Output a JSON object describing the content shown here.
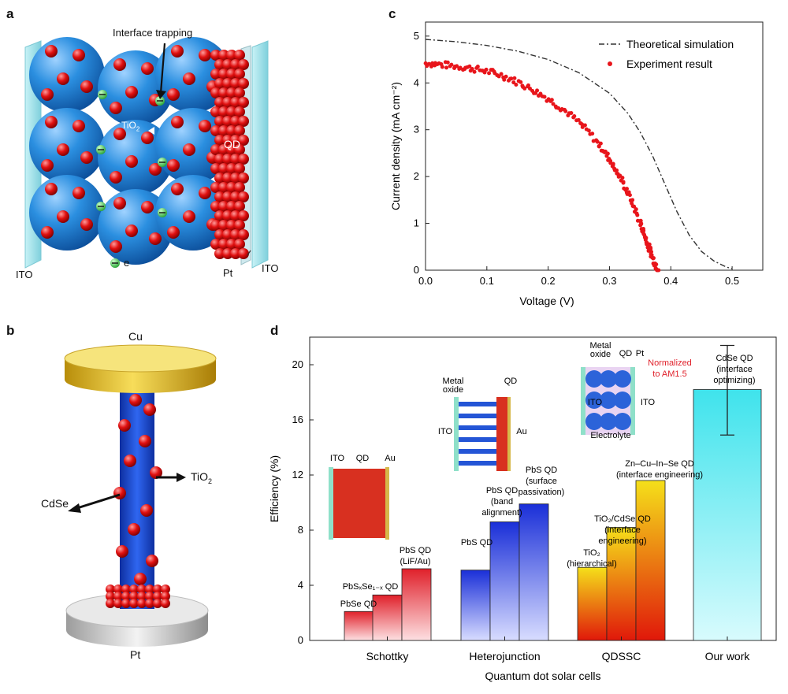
{
  "panels": {
    "a": {
      "letter": "a",
      "labels": {
        "interface": "Interface trapping",
        "tio2": "TiO",
        "tio2_sub": "2",
        "qd": "QD",
        "ito_left": "ITO",
        "ito_right": "ITO",
        "pt": "Pt",
        "electron": "e"
      },
      "colors": {
        "tio2_sphere": "#2b8fe0",
        "qd": "#e01010",
        "electron": "#2ecc40",
        "ito": "#9fe0ea"
      }
    },
    "b": {
      "letter": "b",
      "labels": {
        "cu": "Cu",
        "tio2": "TiO",
        "tio2_sub": "2",
        "cdse": "CdSe",
        "pt": "Pt"
      },
      "colors": {
        "cu": "#e6c42a",
        "rod": "#1f4fd6",
        "qd": "#d80c0c",
        "pt": "#c9c9c9"
      }
    },
    "c": {
      "letter": "c"
    },
    "d": {
      "letter": "d"
    }
  },
  "chart_data": [
    {
      "panel": "c",
      "type": "line",
      "title": "",
      "xlabel": "Voltage (V)",
      "ylabel": "Current density (mA cm⁻²)",
      "xlim": [
        0,
        0.55
      ],
      "ylim": [
        0,
        5.3
      ],
      "xticks": [
        "0.0",
        "0.1",
        "0.2",
        "0.3",
        "0.4",
        "0.5"
      ],
      "yticks": [
        "0",
        "1",
        "2",
        "3",
        "4",
        "5"
      ],
      "legend_position": "top-right",
      "series": [
        {
          "name": "Theoretical simulation",
          "style": "dash-dot",
          "color": "#333333",
          "x": [
            0.0,
            0.05,
            0.1,
            0.15,
            0.2,
            0.25,
            0.3,
            0.33,
            0.35,
            0.37,
            0.39,
            0.41,
            0.43,
            0.45,
            0.47,
            0.49,
            0.5
          ],
          "y": [
            4.93,
            4.88,
            4.8,
            4.68,
            4.5,
            4.22,
            3.78,
            3.35,
            2.95,
            2.45,
            1.85,
            1.25,
            0.75,
            0.4,
            0.2,
            0.07,
            0.03
          ]
        },
        {
          "name": "Experiment result",
          "style": "scatter",
          "color": "#e8151b",
          "x": [
            0.0,
            0.02,
            0.04,
            0.06,
            0.08,
            0.1,
            0.12,
            0.14,
            0.16,
            0.18,
            0.2,
            0.22,
            0.24,
            0.26,
            0.28,
            0.29,
            0.3,
            0.31,
            0.32,
            0.33,
            0.34,
            0.35,
            0.355,
            0.36,
            0.365,
            0.37,
            0.375,
            0.38
          ],
          "y": [
            4.42,
            4.4,
            4.37,
            4.34,
            4.3,
            4.25,
            4.18,
            4.08,
            3.96,
            3.82,
            3.66,
            3.48,
            3.27,
            3.03,
            2.74,
            2.57,
            2.38,
            2.15,
            1.92,
            1.65,
            1.35,
            1.02,
            0.84,
            0.65,
            0.46,
            0.28,
            0.12,
            0.0
          ]
        }
      ]
    },
    {
      "panel": "d",
      "type": "bar",
      "title": "",
      "xlabel": "Quantum dot solar cells",
      "ylabel": "Efficiency (%)",
      "ylim": [
        0,
        22
      ],
      "yticks": [
        "0",
        "4",
        "8",
        "12",
        "16",
        "20"
      ],
      "groups": [
        {
          "name": "Schottky",
          "color_top": "#e0202a",
          "color_bottom": "#fde0e2",
          "bars": [
            {
              "label": "PbSe QD",
              "value": 2.1
            },
            {
              "label": "PbSₓSe₁₋ₓ QD",
              "value": 3.3
            },
            {
              "label": "PbS QD (LiF/Au)",
              "value": 5.2
            }
          ]
        },
        {
          "name": "Heterojunction",
          "color_top": "#1a2fd8",
          "color_bottom": "#d8dcff",
          "bars": [
            {
              "label": "PbS QD",
              "value": 5.1
            },
            {
              "label": "PbS QD (band alignment)",
              "value": 8.6
            },
            {
              "label": "PbS QD (surface passivation)",
              "value": 9.9
            }
          ]
        },
        {
          "name": "QDSSC",
          "color_top": "#f5e01a",
          "color_bottom": "#e0180a",
          "bars": [
            {
              "label": "TiO₂ (hierarchical)",
              "value": 5.3
            },
            {
              "label": "TiO₂/CdSe QD (interface engineering)",
              "value": 8.2
            },
            {
              "label": "Zn–Cu–In–Se QD (interface engineering)",
              "value": 11.6
            }
          ]
        },
        {
          "name": "Our work",
          "color_top": "#3fe3ec",
          "color_bottom": "#d8fbfd",
          "bars": [
            {
              "label": "CdSe QD (interface optimizing)",
              "value": 18.2,
              "error": [
                14.9,
                21.4
              ]
            }
          ]
        }
      ],
      "annotations": {
        "inset_schottky": {
          "ito": "ITO",
          "qd": "QD",
          "au": "Au"
        },
        "inset_hetero": {
          "metal_oxide": "Metal oxide",
          "qd": "QD",
          "ito": "ITO",
          "au": "Au"
        },
        "inset_qdssc": {
          "metal_oxide": "Metal oxide",
          "qd": "QD",
          "pt": "Pt",
          "ito_left": "ITO",
          "ito_right": "ITO",
          "electrolyte": "Electrolyte",
          "normalized": "Normalized to AM1.5"
        }
      }
    }
  ]
}
